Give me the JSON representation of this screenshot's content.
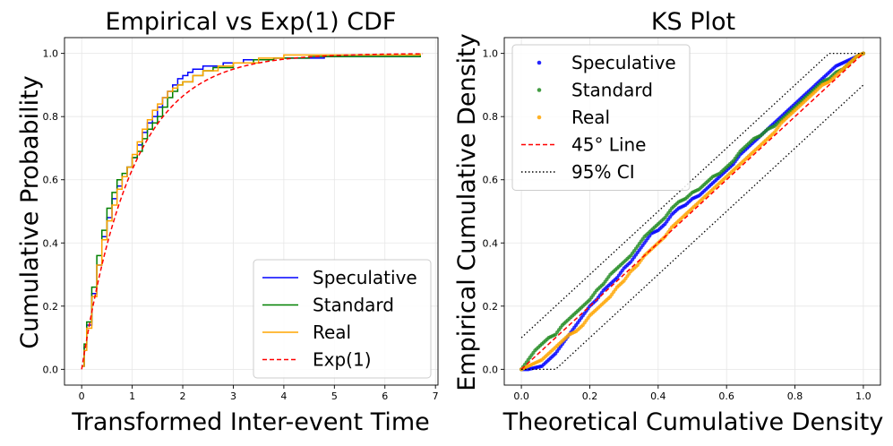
{
  "chart_data": [
    {
      "type": "line",
      "title": "Empirical vs Exp(1) CDF",
      "xlabel": "Transformed Inter-event Time",
      "ylabel": "Cumulative Probability",
      "xlim": [
        -0.34,
        7.05
      ],
      "ylim": [
        -0.05,
        1.05
      ],
      "xticks": [
        0,
        1,
        2,
        3,
        4,
        5,
        6,
        7
      ],
      "yticks": [
        0.0,
        0.2,
        0.4,
        0.6,
        0.8,
        1.0
      ],
      "grid": true,
      "legend_position": "lower-right",
      "series": [
        {
          "name": "Speculative",
          "color": "#0000ff",
          "style": "step",
          "points": [
            [
              0,
              0.01
            ],
            [
              0.05,
              0.07
            ],
            [
              0.1,
              0.14
            ],
            [
              0.2,
              0.24
            ],
            [
              0.3,
              0.33
            ],
            [
              0.4,
              0.42
            ],
            [
              0.5,
              0.48
            ],
            [
              0.6,
              0.54
            ],
            [
              0.7,
              0.58
            ],
            [
              0.8,
              0.61
            ],
            [
              0.9,
              0.64
            ],
            [
              1.0,
              0.67
            ],
            [
              1.1,
              0.71
            ],
            [
              1.2,
              0.75
            ],
            [
              1.3,
              0.78
            ],
            [
              1.4,
              0.8
            ],
            [
              1.5,
              0.83
            ],
            [
              1.6,
              0.86
            ],
            [
              1.7,
              0.88
            ],
            [
              1.8,
              0.9
            ],
            [
              1.9,
              0.92
            ],
            [
              2.0,
              0.93
            ],
            [
              2.1,
              0.94
            ],
            [
              2.2,
              0.95
            ],
            [
              2.4,
              0.96
            ],
            [
              2.8,
              0.97
            ],
            [
              3.2,
              0.98
            ],
            [
              3.8,
              0.985
            ],
            [
              4.8,
              0.99
            ],
            [
              6.7,
              0.99
            ]
          ]
        },
        {
          "name": "Standard",
          "color": "#008000",
          "style": "step",
          "points": [
            [
              0,
              0.01
            ],
            [
              0.05,
              0.08
            ],
            [
              0.1,
              0.15
            ],
            [
              0.2,
              0.26
            ],
            [
              0.3,
              0.36
            ],
            [
              0.4,
              0.44
            ],
            [
              0.5,
              0.51
            ],
            [
              0.6,
              0.56
            ],
            [
              0.7,
              0.6
            ],
            [
              0.8,
              0.62
            ],
            [
              0.9,
              0.64
            ],
            [
              1.0,
              0.67
            ],
            [
              1.1,
              0.69
            ],
            [
              1.2,
              0.73
            ],
            [
              1.3,
              0.76
            ],
            [
              1.4,
              0.78
            ],
            [
              1.5,
              0.8
            ],
            [
              1.6,
              0.83
            ],
            [
              1.7,
              0.86
            ],
            [
              1.8,
              0.88
            ],
            [
              1.9,
              0.9
            ],
            [
              2.0,
              0.91
            ],
            [
              2.2,
              0.93
            ],
            [
              2.4,
              0.945
            ],
            [
              2.6,
              0.955
            ],
            [
              3.0,
              0.97
            ],
            [
              3.4,
              0.98
            ],
            [
              3.8,
              0.985
            ],
            [
              4.5,
              0.99
            ],
            [
              6.7,
              0.995
            ]
          ]
        },
        {
          "name": "Real",
          "color": "#ffa500",
          "style": "step",
          "points": [
            [
              0,
              0.01
            ],
            [
              0.05,
              0.06
            ],
            [
              0.1,
              0.13
            ],
            [
              0.2,
              0.23
            ],
            [
              0.3,
              0.33
            ],
            [
              0.4,
              0.41
            ],
            [
              0.5,
              0.47
            ],
            [
              0.6,
              0.52
            ],
            [
              0.7,
              0.57
            ],
            [
              0.8,
              0.61
            ],
            [
              0.9,
              0.64
            ],
            [
              1.0,
              0.68
            ],
            [
              1.1,
              0.72
            ],
            [
              1.2,
              0.76
            ],
            [
              1.3,
              0.79
            ],
            [
              1.4,
              0.82
            ],
            [
              1.5,
              0.84
            ],
            [
              1.6,
              0.86
            ],
            [
              1.7,
              0.88
            ],
            [
              1.8,
              0.89
            ],
            [
              1.9,
              0.9
            ],
            [
              2.0,
              0.91
            ],
            [
              2.2,
              0.93
            ],
            [
              2.4,
              0.945
            ],
            [
              2.7,
              0.96
            ],
            [
              3.0,
              0.97
            ],
            [
              3.5,
              0.985
            ],
            [
              4.0,
              0.995
            ],
            [
              6.7,
              1.0
            ]
          ]
        },
        {
          "name": "Exp(1)",
          "color": "#ff0000",
          "style": "dashed",
          "function": "exp_cdf",
          "range": [
            0,
            6.75
          ]
        }
      ]
    },
    {
      "type": "scatter",
      "title": "KS Plot",
      "xlabel": "Theoretical Cumulative Density",
      "ylabel": "Empirical Cumulative Density",
      "xlim": [
        -0.05,
        1.05
      ],
      "ylim": [
        -0.05,
        1.05
      ],
      "xticks": [
        0.0,
        0.2,
        0.4,
        0.6,
        0.8,
        1.0
      ],
      "yticks": [
        0.0,
        0.2,
        0.4,
        0.6,
        0.8,
        1.0
      ],
      "grid": true,
      "legend_position": "upper-left",
      "series": [
        {
          "name": "Speculative",
          "color": "#0000ff",
          "marker": "dot",
          "points": [
            [
              0.0,
              0.0
            ],
            [
              0.02,
              0.0
            ],
            [
              0.04,
              0.005
            ],
            [
              0.06,
              0.01
            ],
            [
              0.08,
              0.03
            ],
            [
              0.1,
              0.05
            ],
            [
              0.12,
              0.08
            ],
            [
              0.14,
              0.11
            ],
            [
              0.16,
              0.14
            ],
            [
              0.18,
              0.17
            ],
            [
              0.2,
              0.2
            ],
            [
              0.22,
              0.22
            ],
            [
              0.24,
              0.25
            ],
            [
              0.26,
              0.27
            ],
            [
              0.28,
              0.29
            ],
            [
              0.3,
              0.32
            ],
            [
              0.32,
              0.34
            ],
            [
              0.34,
              0.37
            ],
            [
              0.36,
              0.4
            ],
            [
              0.38,
              0.43
            ],
            [
              0.4,
              0.44
            ],
            [
              0.42,
              0.46
            ],
            [
              0.44,
              0.49
            ],
            [
              0.46,
              0.51
            ],
            [
              0.48,
              0.52
            ],
            [
              0.5,
              0.54
            ],
            [
              0.52,
              0.55
            ],
            [
              0.54,
              0.57
            ],
            [
              0.56,
              0.59
            ],
            [
              0.58,
              0.61
            ],
            [
              0.6,
              0.63
            ],
            [
              0.62,
              0.65
            ],
            [
              0.64,
              0.68
            ],
            [
              0.66,
              0.7
            ],
            [
              0.68,
              0.72
            ],
            [
              0.7,
              0.74
            ],
            [
              0.72,
              0.76
            ],
            [
              0.74,
              0.78
            ],
            [
              0.76,
              0.8
            ],
            [
              0.78,
              0.82
            ],
            [
              0.8,
              0.84
            ],
            [
              0.82,
              0.86
            ],
            [
              0.84,
              0.88
            ],
            [
              0.86,
              0.9
            ],
            [
              0.88,
              0.92
            ],
            [
              0.9,
              0.94
            ],
            [
              0.92,
              0.96
            ],
            [
              0.94,
              0.97
            ],
            [
              0.96,
              0.98
            ],
            [
              0.98,
              0.99
            ],
            [
              1.0,
              1.0
            ]
          ]
        },
        {
          "name": "Standard",
          "color": "#228b22",
          "marker": "dot",
          "points": [
            [
              0.0,
              0.0
            ],
            [
              0.02,
              0.03
            ],
            [
              0.04,
              0.06
            ],
            [
              0.06,
              0.08
            ],
            [
              0.08,
              0.1
            ],
            [
              0.1,
              0.11
            ],
            [
              0.12,
              0.14
            ],
            [
              0.14,
              0.16
            ],
            [
              0.16,
              0.18
            ],
            [
              0.18,
              0.2
            ],
            [
              0.2,
              0.22
            ],
            [
              0.22,
              0.25
            ],
            [
              0.24,
              0.27
            ],
            [
              0.26,
              0.3
            ],
            [
              0.28,
              0.32
            ],
            [
              0.3,
              0.34
            ],
            [
              0.32,
              0.36
            ],
            [
              0.34,
              0.39
            ],
            [
              0.36,
              0.42
            ],
            [
              0.38,
              0.44
            ],
            [
              0.4,
              0.46
            ],
            [
              0.42,
              0.48
            ],
            [
              0.44,
              0.51
            ],
            [
              0.46,
              0.53
            ],
            [
              0.48,
              0.54
            ],
            [
              0.5,
              0.56
            ],
            [
              0.52,
              0.57
            ],
            [
              0.54,
              0.59
            ],
            [
              0.56,
              0.61
            ],
            [
              0.58,
              0.62
            ],
            [
              0.6,
              0.64
            ],
            [
              0.62,
              0.66
            ],
            [
              0.64,
              0.69
            ],
            [
              0.66,
              0.71
            ],
            [
              0.68,
              0.73
            ],
            [
              0.7,
              0.74
            ],
            [
              0.72,
              0.76
            ],
            [
              0.74,
              0.77
            ],
            [
              0.76,
              0.79
            ],
            [
              0.78,
              0.81
            ],
            [
              0.8,
              0.83
            ],
            [
              0.82,
              0.85
            ],
            [
              0.84,
              0.87
            ],
            [
              0.86,
              0.89
            ],
            [
              0.88,
              0.91
            ],
            [
              0.9,
              0.92
            ],
            [
              0.92,
              0.94
            ],
            [
              0.94,
              0.95
            ],
            [
              0.96,
              0.97
            ],
            [
              0.98,
              0.99
            ],
            [
              1.0,
              1.0
            ]
          ]
        },
        {
          "name": "Real",
          "color": "#ffa500",
          "marker": "dot",
          "points": [
            [
              0.0,
              0.0
            ],
            [
              0.02,
              0.01
            ],
            [
              0.04,
              0.02
            ],
            [
              0.06,
              0.03
            ],
            [
              0.08,
              0.05
            ],
            [
              0.1,
              0.07
            ],
            [
              0.12,
              0.09
            ],
            [
              0.14,
              0.11
            ],
            [
              0.16,
              0.12
            ],
            [
              0.18,
              0.14
            ],
            [
              0.2,
              0.17
            ],
            [
              0.22,
              0.19
            ],
            [
              0.24,
              0.21
            ],
            [
              0.26,
              0.23
            ],
            [
              0.28,
              0.26
            ],
            [
              0.3,
              0.28
            ],
            [
              0.32,
              0.31
            ],
            [
              0.34,
              0.33
            ],
            [
              0.36,
              0.36
            ],
            [
              0.38,
              0.38
            ],
            [
              0.4,
              0.4
            ],
            [
              0.42,
              0.42
            ],
            [
              0.44,
              0.45
            ],
            [
              0.46,
              0.47
            ],
            [
              0.48,
              0.49
            ],
            [
              0.5,
              0.51
            ],
            [
              0.52,
              0.53
            ],
            [
              0.54,
              0.55
            ],
            [
              0.56,
              0.57
            ],
            [
              0.58,
              0.59
            ],
            [
              0.6,
              0.61
            ],
            [
              0.62,
              0.63
            ],
            [
              0.64,
              0.65
            ],
            [
              0.66,
              0.67
            ],
            [
              0.68,
              0.69
            ],
            [
              0.7,
              0.71
            ],
            [
              0.72,
              0.73
            ],
            [
              0.74,
              0.75
            ],
            [
              0.76,
              0.78
            ],
            [
              0.78,
              0.8
            ],
            [
              0.8,
              0.82
            ],
            [
              0.82,
              0.84
            ],
            [
              0.84,
              0.86
            ],
            [
              0.86,
              0.88
            ],
            [
              0.88,
              0.9
            ],
            [
              0.9,
              0.91
            ],
            [
              0.92,
              0.93
            ],
            [
              0.94,
              0.95
            ],
            [
              0.96,
              0.97
            ],
            [
              0.98,
              0.99
            ],
            [
              1.0,
              1.0
            ]
          ]
        },
        {
          "name": "45° Line",
          "color": "#ff0000",
          "style": "dashed",
          "points": [
            [
              0,
              0
            ],
            [
              1,
              1
            ]
          ]
        },
        {
          "name": "95% CI",
          "color": "#000000",
          "style": "dotted",
          "upper": [
            [
              0,
              0.1
            ],
            [
              0.9,
              1.0
            ],
            [
              1.0,
              1.0
            ]
          ],
          "lower": [
            [
              0,
              0
            ],
            [
              0.1,
              0
            ],
            [
              1.0,
              0.9
            ]
          ]
        }
      ]
    }
  ]
}
